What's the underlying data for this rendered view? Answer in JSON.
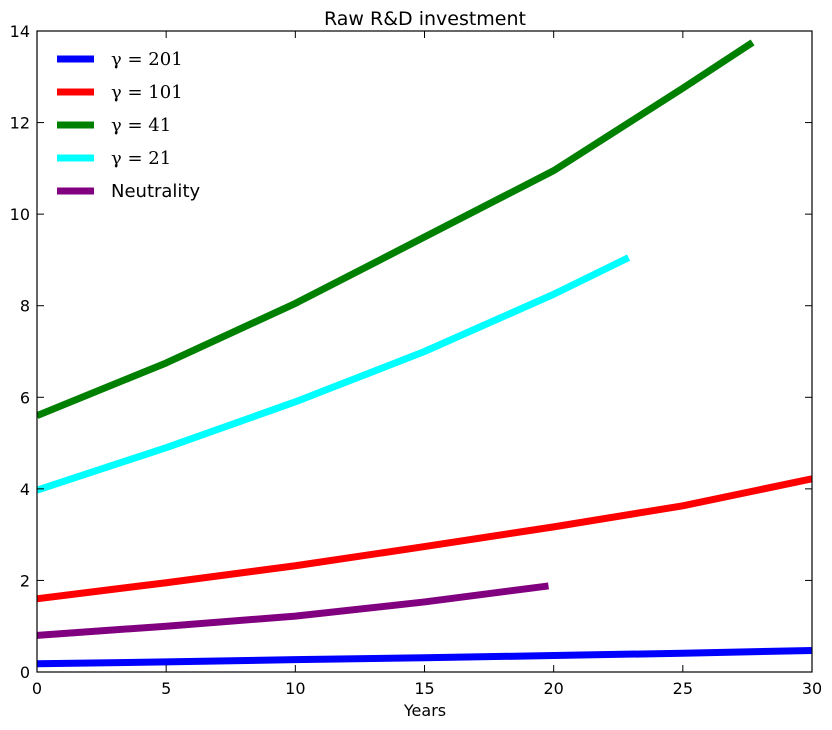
{
  "chart_data": {
    "type": "line",
    "title": "Raw R&D investment",
    "xlabel": "Years",
    "ylabel": "",
    "xlim": [
      0,
      30
    ],
    "ylim": [
      0,
      14
    ],
    "xticks": [
      "0",
      "5",
      "10",
      "15",
      "20",
      "25",
      "30"
    ],
    "yticks": [
      "0",
      "2",
      "4",
      "6",
      "8",
      "10",
      "12",
      "14"
    ],
    "grid": false,
    "legend_position": "top-left",
    "series": [
      {
        "name": "γ = 201",
        "color": "#0000ff",
        "x": [
          0,
          5,
          10,
          15,
          20,
          25,
          30
        ],
        "y": [
          0.18,
          0.22,
          0.27,
          0.31,
          0.36,
          0.41,
          0.47
        ]
      },
      {
        "name": "γ = 101",
        "color": "#ff0000",
        "x": [
          0,
          5,
          10,
          15,
          20,
          25,
          30
        ],
        "y": [
          1.6,
          1.95,
          2.32,
          2.74,
          3.17,
          3.63,
          4.22
        ]
      },
      {
        "name": "γ = 41",
        "color": "#008000",
        "x": [
          0,
          5,
          10,
          15,
          20,
          25,
          27.7
        ],
        "y": [
          5.6,
          6.75,
          8.05,
          9.5,
          10.95,
          12.75,
          13.75
        ]
      },
      {
        "name": "γ = 21",
        "color": "#00ffff",
        "x": [
          0,
          5,
          10,
          15,
          20,
          22.9
        ],
        "y": [
          3.97,
          4.9,
          5.9,
          7.0,
          8.25,
          9.05
        ]
      },
      {
        "name": "Neutrality",
        "color": "#800080",
        "x": [
          0,
          5,
          10,
          15,
          19.8
        ],
        "y": [
          0.8,
          1.0,
          1.22,
          1.53,
          1.88
        ]
      }
    ]
  }
}
